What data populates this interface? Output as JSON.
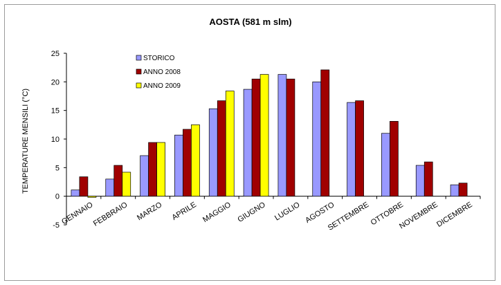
{
  "chart_data": {
    "type": "bar",
    "title": "AOSTA (581 m slm)",
    "xlabel": "",
    "ylabel": "TEMPERATURE MENSILI (°C)",
    "ylim": [
      -5,
      25
    ],
    "yticks": [
      -5,
      0,
      5,
      10,
      15,
      20,
      25
    ],
    "grid": false,
    "legend_position": "top-left",
    "categories": [
      "GENNAIO",
      "FEBBRAIO",
      "MARZO",
      "APRILE",
      "MAGGIO",
      "GIUGNO",
      "LUGLIO",
      "AGOSTO",
      "SETTEMBRE",
      "OTTOBRE",
      "NOVEMBRE",
      "DICEMBRE"
    ],
    "series": [
      {
        "name": "STORICO",
        "color": "#9999ff",
        "values": [
          1.1,
          3.0,
          7.1,
          10.7,
          15.3,
          18.7,
          21.3,
          20.0,
          16.4,
          11.0,
          5.4,
          2.0
        ]
      },
      {
        "name": "ANNO 2008",
        "color": "#a00000",
        "values": [
          3.4,
          5.4,
          9.4,
          11.7,
          16.7,
          20.5,
          20.5,
          22.1,
          16.7,
          13.1,
          6.0,
          2.3
        ]
      },
      {
        "name": "ANNO 2009",
        "color": "#ffff00",
        "values": [
          -0.2,
          4.2,
          9.4,
          12.5,
          18.4,
          21.3,
          null,
          null,
          null,
          null,
          null,
          null
        ]
      }
    ]
  }
}
